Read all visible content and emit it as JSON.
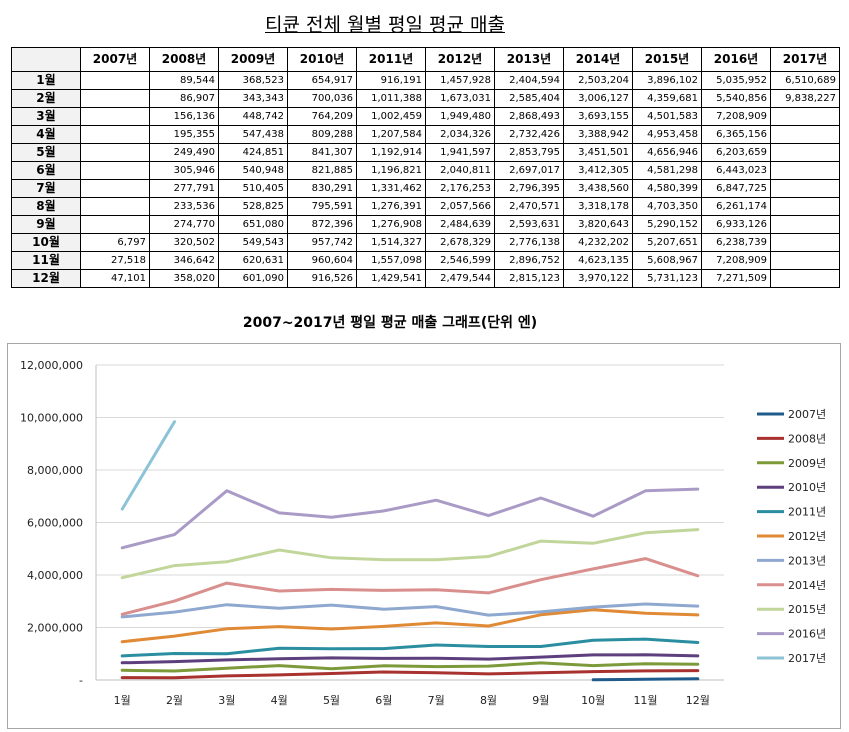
{
  "title": "티큔 전체 월별 평일 평균 매출",
  "table": {
    "years": [
      "2007년",
      "2008년",
      "2009년",
      "2010년",
      "2011년",
      "2012년",
      "2013년",
      "2014년",
      "2015년",
      "2016년",
      "2017년"
    ],
    "months": [
      "1월",
      "2월",
      "3월",
      "4월",
      "5월",
      "6월",
      "7월",
      "8월",
      "9월",
      "10월",
      "11월",
      "12월"
    ],
    "rows": [
      [
        "",
        "89,544",
        "368,523",
        "654,917",
        "916,191",
        "1,457,928",
        "2,404,594",
        "2,503,204",
        "3,896,102",
        "5,035,952",
        "6,510,689"
      ],
      [
        "",
        "86,907",
        "343,343",
        "700,036",
        "1,011,388",
        "1,673,031",
        "2,585,404",
        "3,006,127",
        "4,359,681",
        "5,540,856",
        "9,838,227"
      ],
      [
        "",
        "156,136",
        "448,742",
        "764,209",
        "1,002,459",
        "1,949,480",
        "2,868,493",
        "3,693,155",
        "4,501,583",
        "7,208,909",
        ""
      ],
      [
        "",
        "195,355",
        "547,438",
        "809,288",
        "1,207,584",
        "2,034,326",
        "2,732,426",
        "3,388,942",
        "4,953,458",
        "6,365,156",
        ""
      ],
      [
        "",
        "249,490",
        "424,851",
        "841,307",
        "1,192,914",
        "1,941,597",
        "2,853,795",
        "3,451,501",
        "4,656,946",
        "6,203,659",
        ""
      ],
      [
        "",
        "305,946",
        "540,948",
        "821,885",
        "1,196,821",
        "2,040,811",
        "2,697,017",
        "3,412,305",
        "4,581,298",
        "6,443,023",
        ""
      ],
      [
        "",
        "277,791",
        "510,405",
        "830,291",
        "1,331,462",
        "2,176,253",
        "2,796,395",
        "3,438,560",
        "4,580,399",
        "6,847,725",
        ""
      ],
      [
        "",
        "233,536",
        "528,825",
        "795,591",
        "1,276,391",
        "2,057,566",
        "2,470,571",
        "3,318,178",
        "4,703,350",
        "6,261,174",
        ""
      ],
      [
        "",
        "274,770",
        "651,080",
        "872,396",
        "1,276,908",
        "2,484,639",
        "2,593,631",
        "3,820,643",
        "5,290,152",
        "6,933,126",
        ""
      ],
      [
        "6,797",
        "320,502",
        "549,543",
        "957,742",
        "1,514,327",
        "2,678,329",
        "2,776,138",
        "4,232,202",
        "5,207,651",
        "6,238,739",
        ""
      ],
      [
        "27,518",
        "346,642",
        "620,631",
        "960,604",
        "1,557,098",
        "2,546,599",
        "2,896,752",
        "4,623,135",
        "5,608,967",
        "7,208,909",
        ""
      ],
      [
        "47,101",
        "358,020",
        "601,090",
        "916,526",
        "1,429,541",
        "2,479,544",
        "2,815,123",
        "3,970,122",
        "5,731,123",
        "7,271,509",
        ""
      ]
    ]
  },
  "chart_data": {
    "type": "line",
    "title": "2007~2017년 평일 평균 매출 그래프(단위 엔)",
    "categories": [
      "1월",
      "2월",
      "3월",
      "4월",
      "5월",
      "6월",
      "7월",
      "8월",
      "9월",
      "10월",
      "11월",
      "12월"
    ],
    "ylim": [
      0,
      12000000
    ],
    "yticks": [
      0,
      2000000,
      4000000,
      6000000,
      8000000,
      10000000,
      12000000
    ],
    "ytick_labels": [
      "-",
      "2,000,000",
      "4,000,000",
      "6,000,000",
      "8,000,000",
      "10,000,000",
      "12,000,000"
    ],
    "grid": true,
    "legend": "right",
    "series": [
      {
        "name": "2007년",
        "color": "#1f5c8b",
        "values": [
          null,
          null,
          null,
          null,
          null,
          null,
          null,
          null,
          null,
          6797,
          27518,
          47101
        ]
      },
      {
        "name": "2008년",
        "color": "#a8322f",
        "values": [
          89544,
          86907,
          156136,
          195355,
          249490,
          305946,
          277791,
          233536,
          274770,
          320502,
          346642,
          358020
        ]
      },
      {
        "name": "2009년",
        "color": "#7d9a3a",
        "values": [
          368523,
          343343,
          448742,
          547438,
          424851,
          540948,
          510405,
          528825,
          651080,
          549543,
          620631,
          601090
        ]
      },
      {
        "name": "2010년",
        "color": "#5d3f7e",
        "values": [
          654917,
          700036,
          764209,
          809288,
          841307,
          821885,
          830291,
          795591,
          872396,
          957742,
          960604,
          916526
        ]
      },
      {
        "name": "2011년",
        "color": "#2a8ea0",
        "values": [
          916191,
          1011388,
          1002459,
          1207584,
          1192914,
          1196821,
          1331462,
          1276391,
          1276908,
          1514327,
          1557098,
          1429541
        ]
      },
      {
        "name": "2012년",
        "color": "#e08a36",
        "values": [
          1457928,
          1673031,
          1949480,
          2034326,
          1941597,
          2040811,
          2176253,
          2057566,
          2484639,
          2678329,
          2546599,
          2479544
        ]
      },
      {
        "name": "2013년",
        "color": "#8fa8cf",
        "values": [
          2404594,
          2585404,
          2868493,
          2732426,
          2853795,
          2697017,
          2796395,
          2470571,
          2593631,
          2776138,
          2896752,
          2815123
        ]
      },
      {
        "name": "2014년",
        "color": "#d88f8d",
        "values": [
          2503204,
          3006127,
          3693155,
          3388942,
          3451501,
          3412305,
          3438560,
          3318178,
          3820643,
          4232202,
          4623135,
          3970122
        ]
      },
      {
        "name": "2015년",
        "color": "#c2d69b",
        "values": [
          3896102,
          4359681,
          4501583,
          4953458,
          4656946,
          4581298,
          4580399,
          4703350,
          5290152,
          5207651,
          5608967,
          5731123
        ]
      },
      {
        "name": "2016년",
        "color": "#a99bc6",
        "values": [
          5035952,
          5540856,
          7208909,
          6365156,
          6203659,
          6443023,
          6847725,
          6261174,
          6933126,
          6238739,
          7208909,
          7271509
        ]
      },
      {
        "name": "2017년",
        "color": "#8cc3d6",
        "values": [
          6510689,
          9838227,
          null,
          null,
          null,
          null,
          null,
          null,
          null,
          null,
          null,
          null
        ]
      }
    ]
  }
}
